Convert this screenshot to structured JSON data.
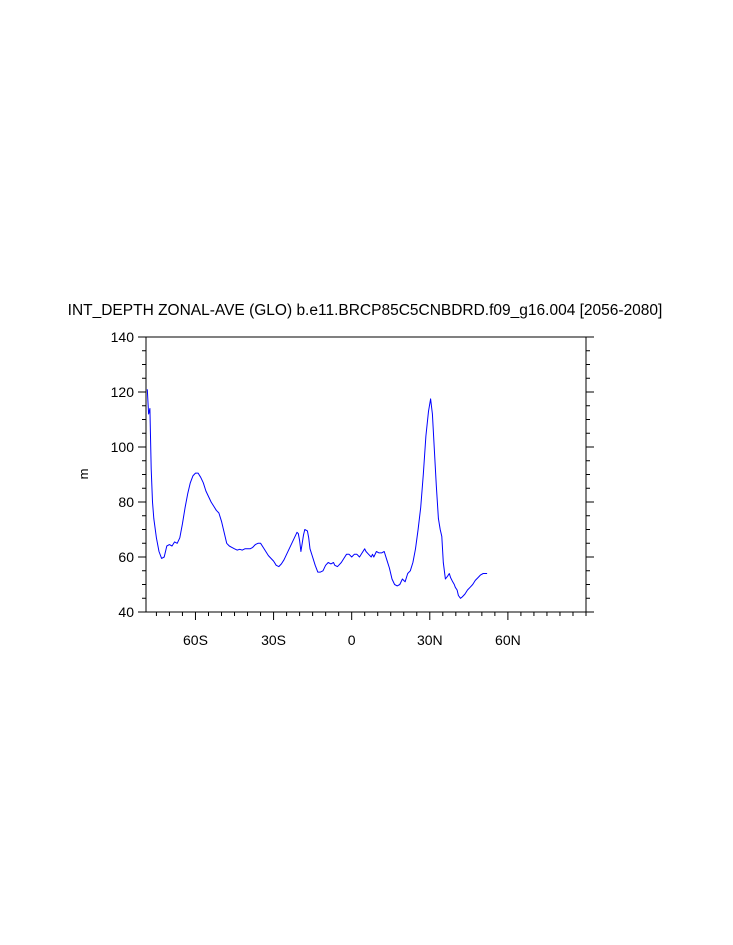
{
  "chart_data": {
    "type": "line",
    "title": "INT_DEPTH ZONAL-AVE (GLO) b.e11.BRCP85C5CNBDRD.f09_g16.004 [2056-2080]",
    "xlabel": "",
    "ylabel": "m",
    "xlim": [
      -79,
      90
    ],
    "ylim": [
      40,
      140
    ],
    "xticks": [
      {
        "value": -60,
        "label": "60S"
      },
      {
        "value": -30,
        "label": "30S"
      },
      {
        "value": 0,
        "label": "0"
      },
      {
        "value": 30,
        "label": "30N"
      },
      {
        "value": 60,
        "label": "60N"
      }
    ],
    "yticks": [
      {
        "value": 40,
        "label": "40"
      },
      {
        "value": 60,
        "label": "60"
      },
      {
        "value": 80,
        "label": "80"
      },
      {
        "value": 100,
        "label": "100"
      },
      {
        "value": 120,
        "label": "120"
      },
      {
        "value": 140,
        "label": "140"
      }
    ],
    "x_minor_step": 5,
    "y_minor_step": 5,
    "grid": false,
    "series": [
      {
        "color": "#0000ff",
        "points": [
          [
            -78.5,
            121
          ],
          [
            -78.0,
            112
          ],
          [
            -77.5,
            114
          ],
          [
            -77.0,
            92
          ],
          [
            -76.5,
            80
          ],
          [
            -76.0,
            74
          ],
          [
            -75.0,
            67
          ],
          [
            -74.0,
            62
          ],
          [
            -73.0,
            59.5
          ],
          [
            -72.0,
            60
          ],
          [
            -71.0,
            64
          ],
          [
            -70.0,
            64.5
          ],
          [
            -69.0,
            64
          ],
          [
            -68.0,
            65.5
          ],
          [
            -67.0,
            65
          ],
          [
            -66.0,
            67
          ],
          [
            -65.0,
            72
          ],
          [
            -64.0,
            78
          ],
          [
            -63.0,
            83
          ],
          [
            -62.0,
            87
          ],
          [
            -61.0,
            89.5
          ],
          [
            -60.0,
            90.5
          ],
          [
            -59.0,
            90.5
          ],
          [
            -58.0,
            89
          ],
          [
            -57.0,
            87
          ],
          [
            -56.0,
            84
          ],
          [
            -55.0,
            82
          ],
          [
            -54.0,
            80
          ],
          [
            -53.0,
            78.5
          ],
          [
            -52.0,
            77
          ],
          [
            -51.0,
            76
          ],
          [
            -50.0,
            73
          ],
          [
            -49.0,
            69
          ],
          [
            -48.0,
            65
          ],
          [
            -47.0,
            64
          ],
          [
            -46.0,
            63.5
          ],
          [
            -45.0,
            63
          ],
          [
            -44.0,
            62.5
          ],
          [
            -43.0,
            62.8
          ],
          [
            -42.0,
            62.5
          ],
          [
            -41.0,
            63
          ],
          [
            -40.0,
            63
          ],
          [
            -39.0,
            63
          ],
          [
            -38.0,
            63.5
          ],
          [
            -37.0,
            64.5
          ],
          [
            -36.0,
            65
          ],
          [
            -35.0,
            65
          ],
          [
            -34.0,
            63.5
          ],
          [
            -33.0,
            62
          ],
          [
            -32.0,
            60.5
          ],
          [
            -31.0,
            59.5
          ],
          [
            -30.0,
            58.5
          ],
          [
            -29.0,
            57
          ],
          [
            -28.0,
            56.5
          ],
          [
            -27.0,
            57.5
          ],
          [
            -26.0,
            59
          ],
          [
            -25.0,
            61
          ],
          [
            -24.0,
            63
          ],
          [
            -23.0,
            65
          ],
          [
            -22.0,
            67
          ],
          [
            -21.0,
            69
          ],
          [
            -20.5,
            68.5
          ],
          [
            -20.0,
            66
          ],
          [
            -19.5,
            62
          ],
          [
            -19.0,
            65
          ],
          [
            -18.5,
            68
          ],
          [
            -18.0,
            70
          ],
          [
            -17.0,
            69.5
          ],
          [
            -16.5,
            67
          ],
          [
            -16.0,
            63
          ],
          [
            -15.0,
            60
          ],
          [
            -14.0,
            57
          ],
          [
            -13.0,
            54.5
          ],
          [
            -12.0,
            54.5
          ],
          [
            -11.0,
            55
          ],
          [
            -10.0,
            57
          ],
          [
            -9.0,
            58
          ],
          [
            -8.0,
            57.5
          ],
          [
            -7.0,
            58
          ],
          [
            -6.5,
            57
          ],
          [
            -5.5,
            56.5
          ],
          [
            -5.0,
            57
          ],
          [
            -4.0,
            58
          ],
          [
            -3.0,
            59.5
          ],
          [
            -2.0,
            61
          ],
          [
            -1.0,
            61
          ],
          [
            0.0,
            60
          ],
          [
            1.0,
            61
          ],
          [
            2.0,
            61
          ],
          [
            3.0,
            60
          ],
          [
            4.0,
            61.5
          ],
          [
            5.0,
            63
          ],
          [
            5.5,
            62
          ],
          [
            6.5,
            61
          ],
          [
            7.5,
            60
          ],
          [
            8.0,
            61
          ],
          [
            8.5,
            60
          ],
          [
            9.5,
            62
          ],
          [
            10.5,
            61.5
          ],
          [
            11.5,
            61.5
          ],
          [
            12.5,
            62
          ],
          [
            13.5,
            59
          ],
          [
            14.5,
            56
          ],
          [
            15.5,
            52
          ],
          [
            16.5,
            50
          ],
          [
            17.5,
            49.5
          ],
          [
            18.5,
            50
          ],
          [
            19.5,
            52
          ],
          [
            20.5,
            51
          ],
          [
            21.5,
            54
          ],
          [
            22.5,
            55
          ],
          [
            23.5,
            58
          ],
          [
            24.5,
            63
          ],
          [
            25.5,
            70
          ],
          [
            26.5,
            78
          ],
          [
            27.5,
            90
          ],
          [
            28.5,
            104
          ],
          [
            29.5,
            113
          ],
          [
            30.3,
            117.5
          ],
          [
            31.0,
            112
          ],
          [
            31.8,
            98
          ],
          [
            32.5,
            86
          ],
          [
            33.3,
            74
          ],
          [
            34.0,
            70
          ],
          [
            34.6,
            67.5
          ],
          [
            35.2,
            58
          ],
          [
            36.0,
            52
          ],
          [
            36.8,
            53
          ],
          [
            37.5,
            54
          ],
          [
            38.0,
            52.5
          ],
          [
            38.8,
            51
          ],
          [
            39.4,
            50
          ],
          [
            39.8,
            49
          ],
          [
            40.5,
            48
          ],
          [
            41.0,
            46
          ],
          [
            41.8,
            45
          ],
          [
            42.5,
            45.5
          ],
          [
            43.5,
            46.5
          ],
          [
            44.5,
            48
          ],
          [
            45.5,
            49
          ],
          [
            46.5,
            50
          ],
          [
            47.5,
            51.5
          ],
          [
            48.5,
            52.5
          ],
          [
            49.5,
            53.5
          ],
          [
            50.5,
            54
          ],
          [
            51.5,
            54
          ],
          [
            52.0,
            54
          ]
        ]
      }
    ]
  }
}
